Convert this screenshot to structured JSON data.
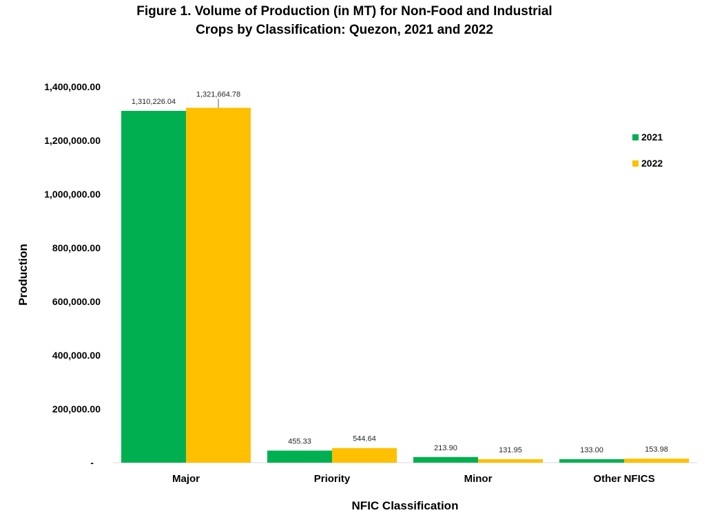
{
  "chart_data": {
    "type": "bar",
    "title_lines": [
      "Figure 1. Volume of Production (in MT) for Non-Food and Industrial",
      "Crops by Classification: Quezon, 2021 and 2022"
    ],
    "xlabel": "NFIC Classification",
    "ylabel": "Production",
    "categories": [
      "Major",
      "Priority",
      "Minor",
      "Other NFICS"
    ],
    "series": [
      {
        "name": "2021",
        "color": "#00b050",
        "values": [
          1310226.04,
          455.33,
          213.9,
          133.0
        ],
        "labels": [
          "1,310,226.04",
          "455.33",
          "213.90",
          "133.00"
        ],
        "rendered_values": [
          1310226.04,
          45000,
          21000,
          13000
        ]
      },
      {
        "name": "2022",
        "color": "#ffc000",
        "values": [
          1321664.78,
          544.64,
          131.95,
          153.98
        ],
        "labels": [
          "1,321,664.78",
          "544.64",
          "131.95",
          "153.98"
        ],
        "rendered_values": [
          1321664.78,
          54500,
          13000,
          15000
        ]
      }
    ],
    "ylim": [
      0,
      1400000
    ],
    "yticks": [
      0,
      200000,
      400000,
      600000,
      800000,
      1000000,
      1200000,
      1400000
    ],
    "ytick_labels": [
      "-",
      "200,000.00",
      "400,000.00",
      "600,000.00",
      "800,000.00",
      "1,000,000.00",
      "1,200,000.00",
      "1,400,000.00"
    ],
    "grid": false,
    "legend_position": "right"
  }
}
